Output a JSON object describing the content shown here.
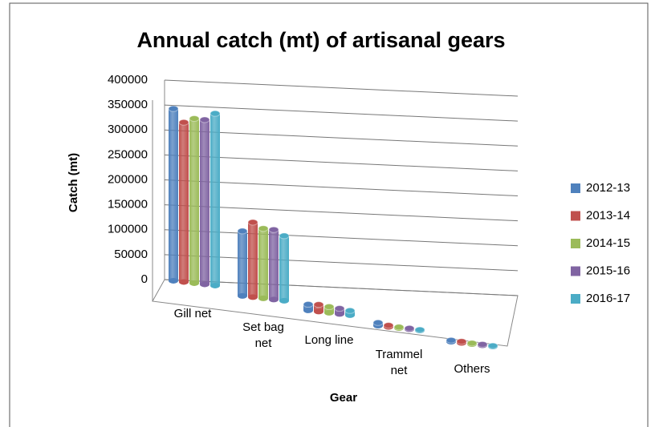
{
  "chart_data": {
    "type": "bar3d",
    "title": "Annual catch  (mt) of artisanal gears",
    "x_label": "Gear",
    "y_label": "Catch (mt)",
    "categories": [
      "Gill net",
      "Set bag net",
      "Long line",
      "Trammel net",
      "Others"
    ],
    "series": [
      {
        "name": "2012-13",
        "color": "#4f81bd",
        "values": [
          345000,
          130000,
          12000,
          6000,
          3000
        ]
      },
      {
        "name": "2013-14",
        "color": "#c0504d",
        "values": [
          320000,
          150000,
          14000,
          3000,
          3000
        ]
      },
      {
        "name": "2014-15",
        "color": "#9bbb59",
        "values": [
          330000,
          140000,
          12000,
          2000,
          2000
        ]
      },
      {
        "name": "2015-16",
        "color": "#8064a2",
        "values": [
          330000,
          140000,
          11000,
          2000,
          2000
        ]
      },
      {
        "name": "2016-17",
        "color": "#4bacc6",
        "values": [
          345000,
          130000,
          9000,
          1500,
          1500
        ]
      }
    ],
    "ylim": [
      0,
      400000
    ],
    "yticks": [
      0,
      50000,
      100000,
      150000,
      200000,
      250000,
      300000,
      350000,
      400000
    ],
    "grid": true,
    "legend": "right"
  }
}
